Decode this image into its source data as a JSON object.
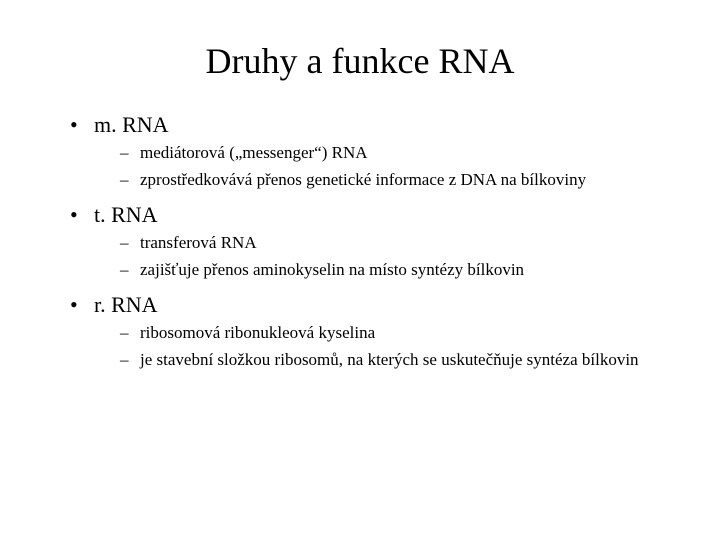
{
  "title": "Druhy a funkce RNA",
  "sections": [
    {
      "heading": "m. RNA",
      "sub": [
        "mediátorová („messenger“) RNA",
        "zprostředkovává přenos genetické informace z DNA na bílkoviny"
      ]
    },
    {
      "heading": "t. RNA",
      "sub": [
        "transferová RNA",
        "zajišťuje přenos aminokyselin na místo syntézy bílkovin"
      ]
    },
    {
      "heading": "r. RNA",
      "sub": [
        "ribosomová ribonukleová kyselina",
        "je stavební složkou ribosomů, na kterých se uskutečňuje syntéza bílkovin"
      ]
    }
  ],
  "style": {
    "background_color": "#ffffff",
    "text_color": "#000000",
    "title_fontsize": 36,
    "level1_fontsize": 22,
    "level2_fontsize": 17,
    "font_family": "Times New Roman",
    "bullet_char": "•",
    "dash_char": "–"
  }
}
